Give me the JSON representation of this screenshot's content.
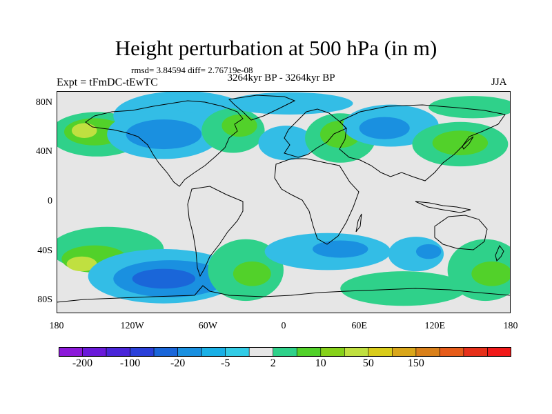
{
  "title": "Height perturbation at 500 hPa (in m)",
  "stats": "rmsd= 3.84594 diff= 2.76719e-08",
  "experiment": "Expt = tFmDC-tEwTC",
  "period": "3264kyr BP - 3264kyr BP",
  "season": "JJA",
  "map": {
    "lon_range": [
      -180,
      180
    ],
    "lat_range": [
      -90,
      90
    ],
    "y_ticks": [
      {
        "lat": 80,
        "label": "80N"
      },
      {
        "lat": 40,
        "label": "40N"
      },
      {
        "lat": 0,
        "label": "0"
      },
      {
        "lat": -40,
        "label": "40S"
      },
      {
        "lat": -80,
        "label": "80S"
      }
    ],
    "x_ticks": [
      {
        "lon": -180,
        "label": "180"
      },
      {
        "lon": -120,
        "label": "120W"
      },
      {
        "lon": -60,
        "label": "60W"
      },
      {
        "lon": 0,
        "label": "0"
      },
      {
        "lon": 60,
        "label": "60E"
      },
      {
        "lon": 120,
        "label": "120E"
      },
      {
        "lon": 180,
        "label": "180"
      }
    ],
    "background_color": "#e6e6e6",
    "anomaly_blobs": [
      {
        "lon": -148,
        "lat": 55,
        "rx": 38,
        "ry": 18,
        "color": "#2fd18a"
      },
      {
        "lon": -150,
        "lat": 57,
        "rx": 24,
        "ry": 11,
        "color": "#52d12a"
      },
      {
        "lon": -158,
        "lat": 58,
        "rx": 10,
        "ry": 6,
        "color": "#c0e040"
      },
      {
        "lon": -80,
        "lat": 70,
        "rx": 55,
        "ry": 20,
        "color": "#33bde6"
      },
      {
        "lon": -95,
        "lat": 55,
        "rx": 45,
        "ry": 20,
        "color": "#33bde6"
      },
      {
        "lon": -95,
        "lat": 55,
        "rx": 30,
        "ry": 12,
        "color": "#1a90e0"
      },
      {
        "lon": -40,
        "lat": 58,
        "rx": 25,
        "ry": 18,
        "color": "#2fd18a"
      },
      {
        "lon": -35,
        "lat": 62,
        "rx": 14,
        "ry": 9,
        "color": "#52d12a"
      },
      {
        "lon": 5,
        "lat": 80,
        "rx": 50,
        "ry": 9,
        "color": "#33bde6"
      },
      {
        "lon": 2,
        "lat": 48,
        "rx": 22,
        "ry": 14,
        "color": "#33bde6"
      },
      {
        "lon": 45,
        "lat": 52,
        "rx": 28,
        "ry": 20,
        "color": "#2fd18a"
      },
      {
        "lon": 45,
        "lat": 55,
        "rx": 16,
        "ry": 11,
        "color": "#52d12a"
      },
      {
        "lon": 85,
        "lat": 62,
        "rx": 38,
        "ry": 17,
        "color": "#33bde6"
      },
      {
        "lon": 80,
        "lat": 60,
        "rx": 20,
        "ry": 9,
        "color": "#1a90e0"
      },
      {
        "lon": 140,
        "lat": 47,
        "rx": 38,
        "ry": 18,
        "color": "#2fd18a"
      },
      {
        "lon": 140,
        "lat": 48,
        "rx": 22,
        "ry": 10,
        "color": "#52d12a"
      },
      {
        "lon": 150,
        "lat": 77,
        "rx": 35,
        "ry": 9,
        "color": "#2fd18a"
      },
      {
        "lon": -140,
        "lat": -38,
        "rx": 45,
        "ry": 18,
        "color": "#2fd18a"
      },
      {
        "lon": -150,
        "lat": -46,
        "rx": 26,
        "ry": 11,
        "color": "#52d12a"
      },
      {
        "lon": -160,
        "lat": -50,
        "rx": 12,
        "ry": 6,
        "color": "#c0e040"
      },
      {
        "lon": -95,
        "lat": -60,
        "rx": 60,
        "ry": 22,
        "color": "#33bde6"
      },
      {
        "lon": -90,
        "lat": -62,
        "rx": 45,
        "ry": 15,
        "color": "#1a90e0"
      },
      {
        "lon": -95,
        "lat": -62,
        "rx": 25,
        "ry": 8,
        "color": "#1a66d9"
      },
      {
        "lon": -30,
        "lat": -55,
        "rx": 30,
        "ry": 25,
        "color": "#2fd18a"
      },
      {
        "lon": -25,
        "lat": -58,
        "rx": 15,
        "ry": 10,
        "color": "#52d12a"
      },
      {
        "lon": 35,
        "lat": -40,
        "rx": 50,
        "ry": 15,
        "color": "#33bde6"
      },
      {
        "lon": 45,
        "lat": -38,
        "rx": 22,
        "ry": 7,
        "color": "#1a90e0"
      },
      {
        "lon": 105,
        "lat": -42,
        "rx": 22,
        "ry": 14,
        "color": "#33bde6"
      },
      {
        "lon": 115,
        "lat": -40,
        "rx": 10,
        "ry": 6,
        "color": "#1a90e0"
      },
      {
        "lon": 95,
        "lat": -70,
        "rx": 50,
        "ry": 14,
        "color": "#2fd18a"
      },
      {
        "lon": 160,
        "lat": -55,
        "rx": 30,
        "ry": 25,
        "color": "#2fd18a"
      },
      {
        "lon": 165,
        "lat": -58,
        "rx": 16,
        "ry": 10,
        "color": "#52d12a"
      }
    ]
  },
  "colorbar": {
    "colors": [
      "#8c1ad9",
      "#6a1ad9",
      "#4a26d9",
      "#2a40d9",
      "#1a66d9",
      "#1a90e0",
      "#1ab0e6",
      "#33cce6",
      "#e6e6e6",
      "#2fd18a",
      "#52d12a",
      "#86d11a",
      "#c0e040",
      "#d9cc1a",
      "#d9a61a",
      "#d9801a",
      "#e65c1a",
      "#e6301a",
      "#f01a1a"
    ],
    "labels": [
      {
        "boundary": 1,
        "label": "-200"
      },
      {
        "boundary": 3,
        "label": "-100"
      },
      {
        "boundary": 5,
        "label": "-20"
      },
      {
        "boundary": 7,
        "label": "-5"
      },
      {
        "boundary": 9,
        "label": "2"
      },
      {
        "boundary": 11,
        "label": "10"
      },
      {
        "boundary": 13,
        "label": "50"
      },
      {
        "boundary": 15,
        "label": "150"
      }
    ]
  },
  "coastline_color": "#000000"
}
